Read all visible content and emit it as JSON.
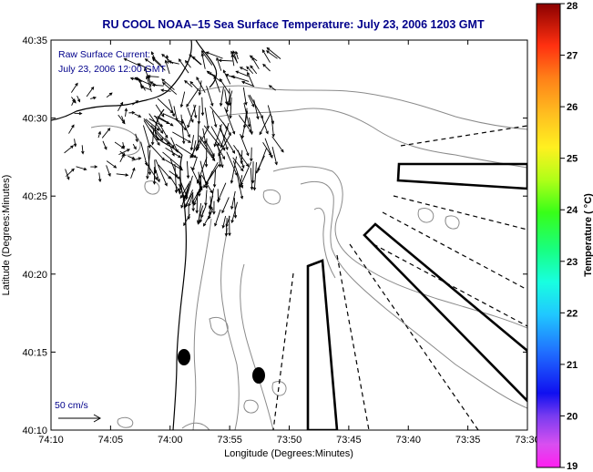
{
  "title": "RU COOL   NOAA–15   Sea Surface Temperature:   July 23, 2006 1203 GMT",
  "annotation": {
    "line1": "Raw Surface Current:",
    "line2": "July 23, 2006 12:00 GMT"
  },
  "scale_label": "50 cm/s",
  "map": {
    "xlabel": "Longitude (Degrees:Minutes)",
    "ylabel": "Latitude (Degrees:Minutes)",
    "x_ticks": [
      "74:10",
      "74:05",
      "74:00",
      "73:55",
      "73:50",
      "73:45",
      "73:40",
      "73:35",
      "73:30"
    ],
    "y_ticks": [
      "40:35",
      "40:30",
      "40:25",
      "40:20",
      "40:15",
      "40:10"
    ]
  },
  "colorbar": {
    "label": "Temperature ( °C)",
    "ticks": [
      "28",
      "27",
      "26",
      "25",
      "24",
      "23",
      "22",
      "21",
      "20",
      "19"
    ],
    "min": 19,
    "max": 28
  },
  "colors": {
    "title": "#00008b",
    "land_line": "#000000",
    "contour": "#888888"
  }
}
